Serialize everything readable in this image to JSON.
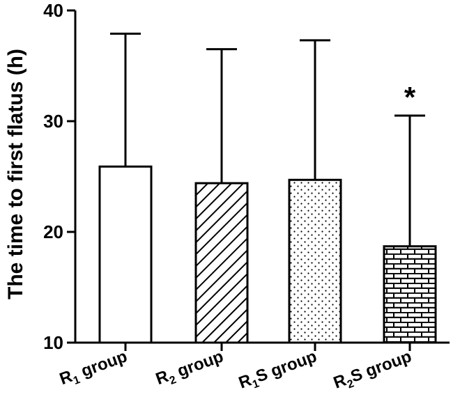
{
  "chart_data": {
    "type": "bar",
    "ylabel": "The time to first flatus (h)",
    "xlabel": "",
    "ylim": [
      10,
      40
    ],
    "yticks": [
      10,
      20,
      30,
      40
    ],
    "grid": false,
    "categories": [
      {
        "base": "R",
        "sub": "1",
        "suffix": " group"
      },
      {
        "base": "R",
        "sub": "2",
        "suffix": " group"
      },
      {
        "base": "R",
        "sub": "1",
        "suffix": "S group"
      },
      {
        "base": "R",
        "sub": "2",
        "suffix": "S group"
      }
    ],
    "values": [
      25.9,
      24.4,
      24.7,
      18.7
    ],
    "error_upper": [
      37.9,
      36.5,
      37.3,
      30.5
    ],
    "patterns": [
      "none",
      "diagonal-hatch",
      "dots",
      "brick"
    ],
    "annotations": [
      {
        "category_index": 3,
        "text": "*"
      }
    ]
  }
}
